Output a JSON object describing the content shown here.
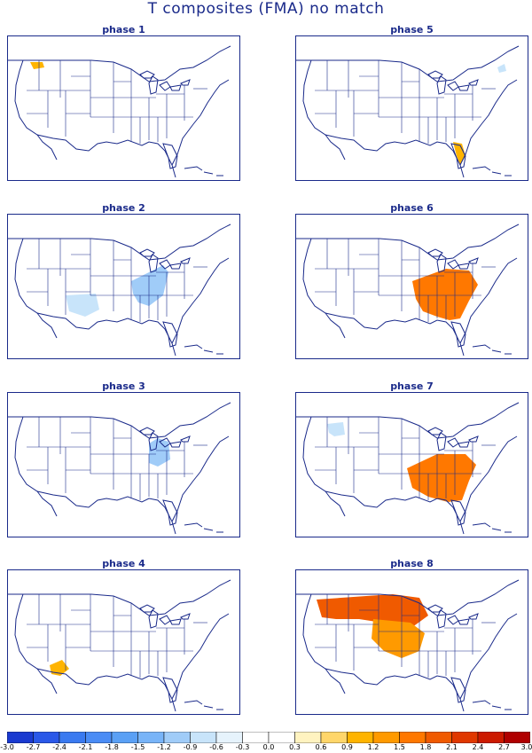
{
  "title": "T composites (FMA)   no match",
  "panels": [
    {
      "key": "p1",
      "label": "phase 1",
      "anomalies": [
        {
          "region": "washington-nw",
          "level": 0.9
        }
      ]
    },
    {
      "key": "p2",
      "label": "phase 2",
      "anomalies": [
        {
          "region": "new-mexico",
          "level": -0.9
        },
        {
          "region": "ohio-valley",
          "level": -1.2
        }
      ]
    },
    {
      "key": "p3",
      "label": "phase 3",
      "anomalies": [
        {
          "region": "michigan-ohio",
          "level": -1.2
        }
      ]
    },
    {
      "key": "p4",
      "label": "phase 4",
      "anomalies": [
        {
          "region": "arizona-california",
          "level": 0.9
        }
      ]
    },
    {
      "key": "p5",
      "label": "phase 5",
      "anomalies": [
        {
          "region": "maine",
          "level": -0.9
        },
        {
          "region": "florida",
          "level": 0.9
        }
      ]
    },
    {
      "key": "p6",
      "label": "phase 6",
      "anomalies": [
        {
          "region": "southeast-ohio-valley",
          "level": 1.5
        }
      ]
    },
    {
      "key": "p7",
      "label": "phase 7",
      "anomalies": [
        {
          "region": "montana",
          "level": -0.9
        },
        {
          "region": "southeast",
          "level": 1.5
        }
      ]
    },
    {
      "key": "p8",
      "label": "phase 8",
      "anomalies": [
        {
          "region": "northern-plains",
          "level": 1.8
        },
        {
          "region": "central-plains",
          "level": 1.2
        }
      ]
    }
  ],
  "colorbar": {
    "labels": [
      "-3.0",
      "-2.7",
      "-2.4",
      "-2.1",
      "-1.8",
      "-1.5",
      "-1.2",
      "-0.9",
      "-0.6",
      "-0.3",
      "0.0",
      "0.3",
      "0.6",
      "0.9",
      "1.2",
      "1.5",
      "1.8",
      "2.1",
      "2.4",
      "2.7",
      "3.0"
    ],
    "colors": [
      "#1a3ad0",
      "#2a58e8",
      "#3a7af0",
      "#4a8cf5",
      "#5aa0f5",
      "#78b4f8",
      "#a0ccf8",
      "#c8e4fa",
      "#e6f3fc",
      "#ffffff",
      "#ffffff",
      "#fff3c0",
      "#ffd66a",
      "#ffb400",
      "#ff9a00",
      "#ff7800",
      "#f05a00",
      "#e03800",
      "#cc1a00",
      "#b00000"
    ]
  }
}
